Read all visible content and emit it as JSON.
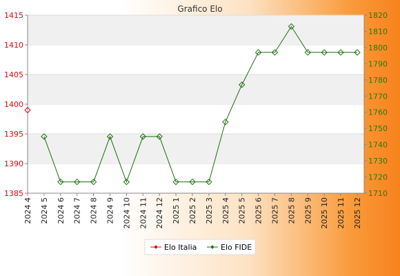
{
  "chart_data": {
    "type": "line",
    "title": "Grafico Elo",
    "categories": [
      "2024 4",
      "2024 5",
      "2024 6",
      "2024 7",
      "2024 8",
      "2024 9",
      "2024 10",
      "2024 11",
      "2024 12",
      "2025 1",
      "2025 2",
      "2025 3",
      "2025 4",
      "2025 5",
      "2025 6",
      "2025 7",
      "2025 8",
      "2025 9",
      "2025 10",
      "2025 11",
      "2025 12"
    ],
    "y_left": {
      "ylim": [
        1385,
        1415
      ],
      "ticks": [
        1385,
        1390,
        1395,
        1400,
        1405,
        1410,
        1415
      ],
      "color": "#e8000d"
    },
    "y_right": {
      "ylim": [
        1710,
        1820
      ],
      "ticks": [
        1710,
        1720,
        1730,
        1740,
        1750,
        1760,
        1770,
        1780,
        1790,
        1800,
        1810,
        1820
      ],
      "color": "#2a7a0a"
    },
    "series": [
      {
        "name": "Elo Italia",
        "axis": "left",
        "color": "#e8000d",
        "values": [
          1399,
          null,
          null,
          null,
          null,
          null,
          null,
          null,
          null,
          null,
          null,
          null,
          null,
          null,
          null,
          null,
          null,
          null,
          null,
          null,
          null
        ]
      },
      {
        "name": "Elo FIDE",
        "axis": "right",
        "color": "#1a6e0a",
        "values": [
          null,
          1745,
          1717,
          1717,
          1717,
          1745,
          1717,
          1745,
          1745,
          1717,
          1717,
          1717,
          1754,
          1777,
          1797,
          1797,
          1813,
          1797,
          1797,
          1797,
          1797
        ]
      }
    ],
    "grid": "horizontal-bands",
    "legend": "bottom-center"
  }
}
